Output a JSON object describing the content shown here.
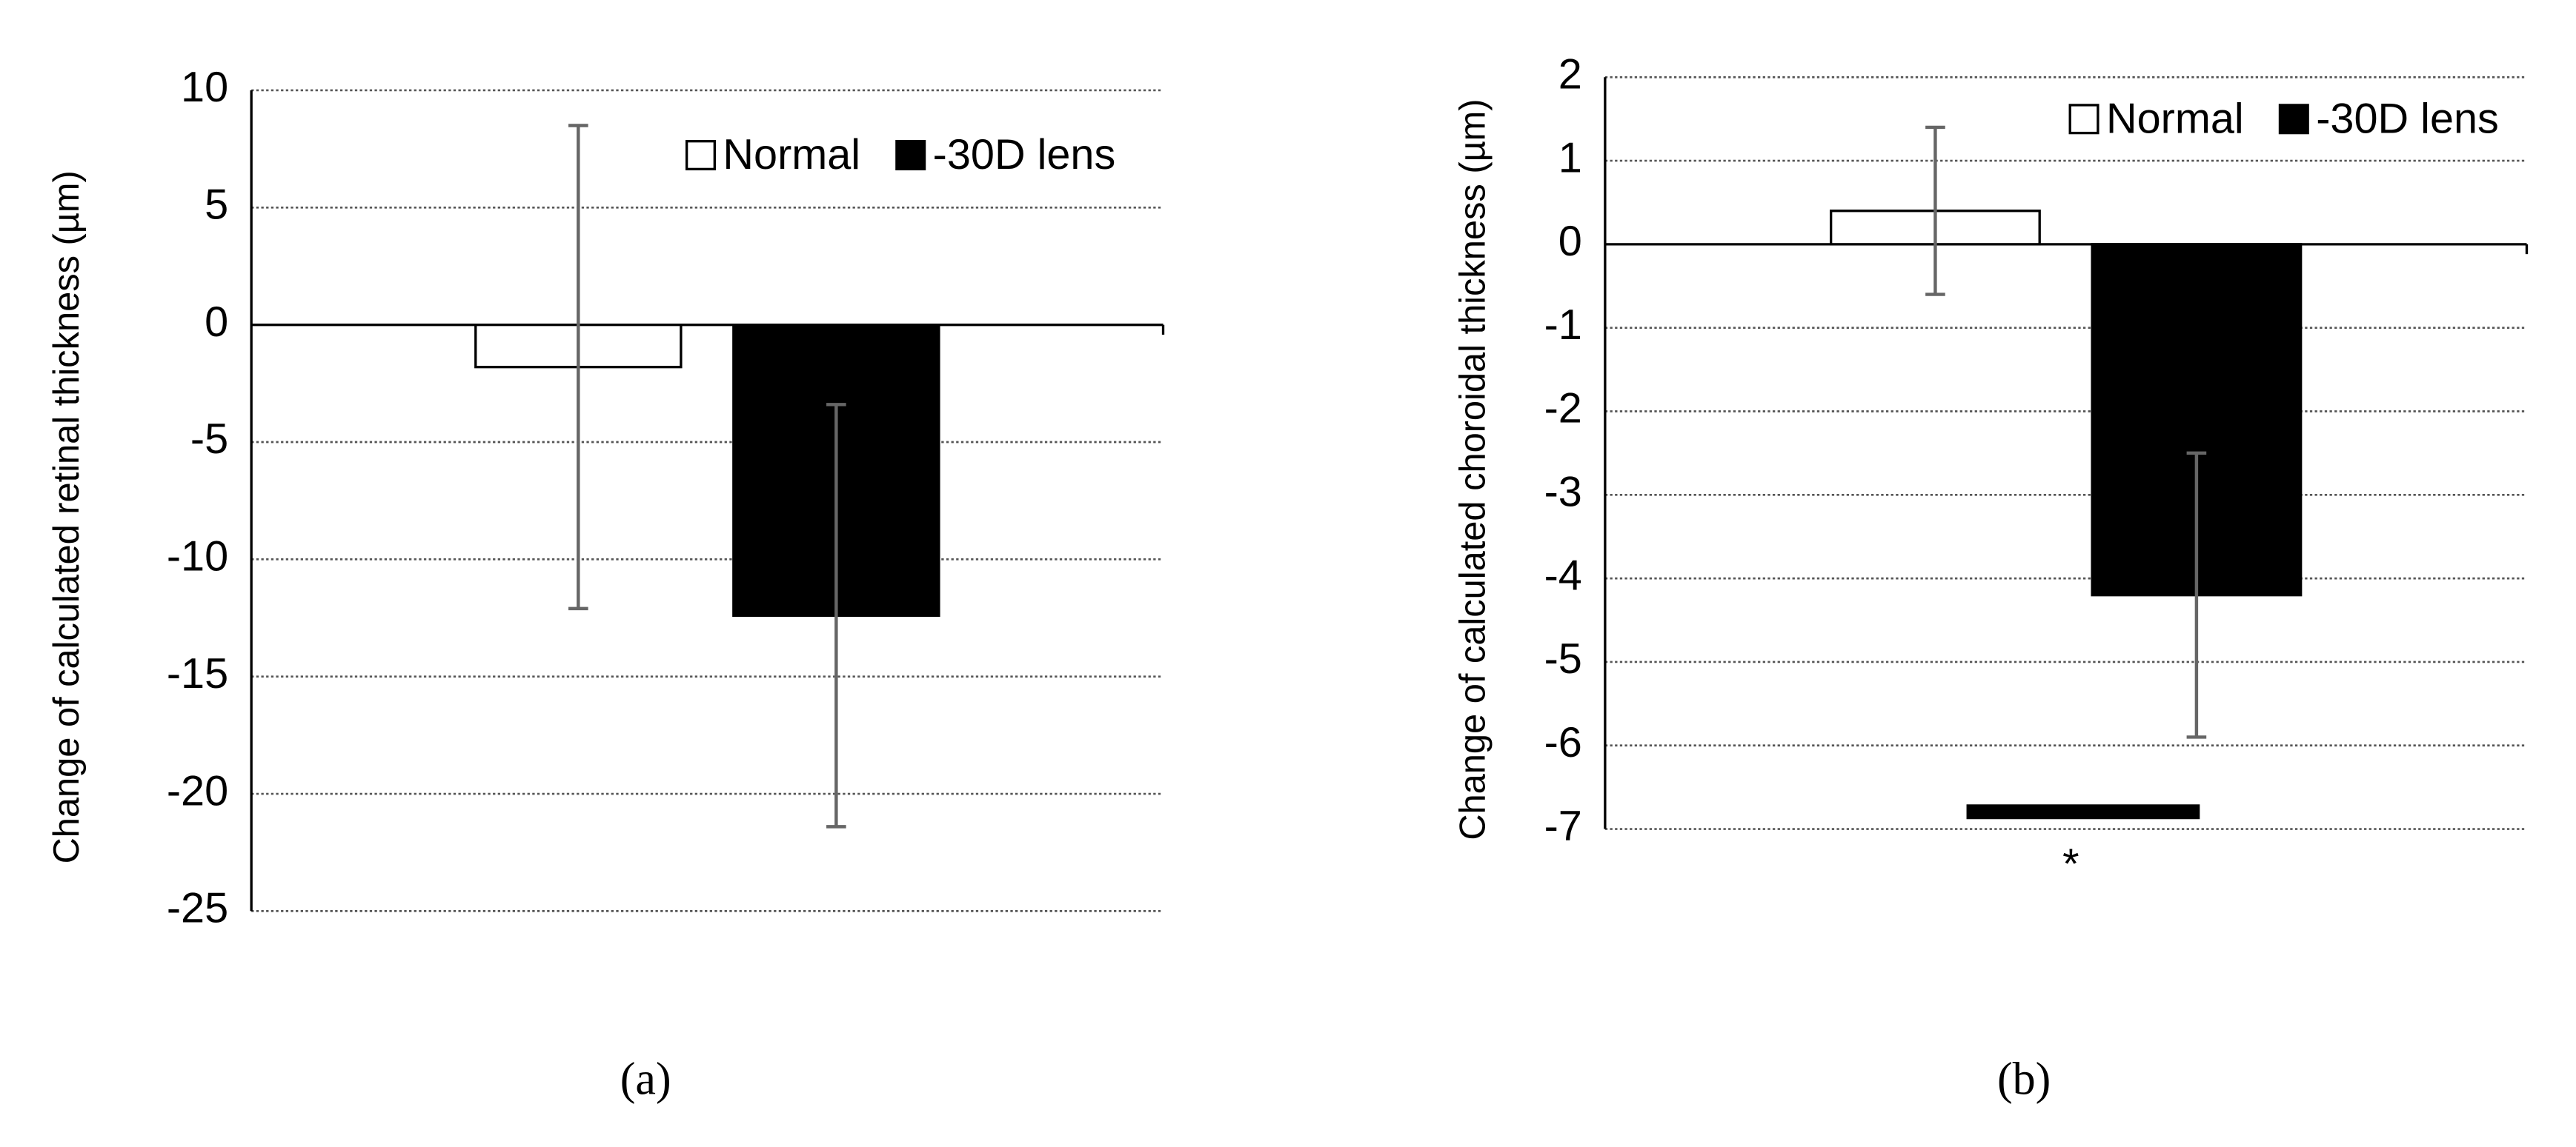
{
  "chart_data": [
    {
      "type": "bar",
      "panel_label": "(a)",
      "y_label": "Change of calculated retinal thickness (µm)",
      "categories": [
        null
      ],
      "series": [
        {
          "name": "Normal",
          "color": "#ffffff",
          "values": [
            -1.8
          ],
          "errors": [
            10.3
          ]
        },
        {
          "name": "-30D lens",
          "color": "#000000",
          "values": [
            -12.4
          ],
          "errors": [
            9.0
          ]
        }
      ],
      "ylim": [
        -25,
        10
      ],
      "yticks": [
        -25,
        -20,
        -15,
        -10,
        -5,
        0,
        5,
        10
      ],
      "grid": true,
      "legend": "top-right"
    },
    {
      "type": "bar",
      "panel_label": "(b)",
      "y_label": "Change of calculated choroidal thickness (µm)",
      "categories": [
        null
      ],
      "series": [
        {
          "name": "Normal",
          "color": "#ffffff",
          "values": [
            0.4
          ],
          "errors": [
            1.0
          ]
        },
        {
          "name": "-30D lens",
          "color": "#000000",
          "values": [
            -4.2
          ],
          "errors": [
            1.7
          ]
        }
      ],
      "ylim": [
        -7,
        2
      ],
      "yticks": [
        -7,
        -6,
        -5,
        -4,
        -3,
        -2,
        -1,
        0,
        1,
        2
      ],
      "grid": true,
      "legend": "top-right",
      "annotation": "*"
    }
  ]
}
